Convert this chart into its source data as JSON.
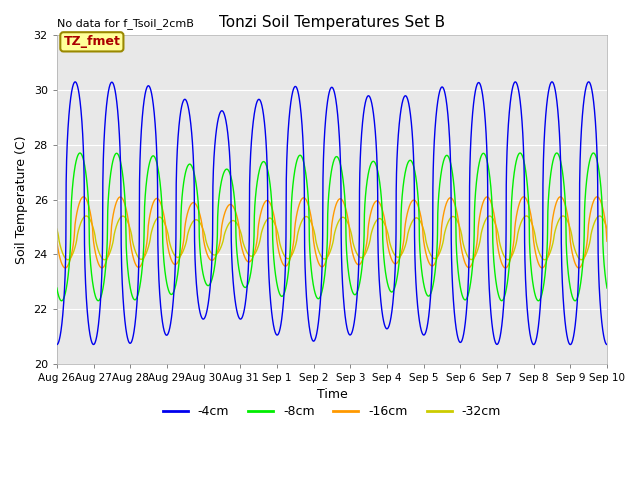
{
  "title": "Tonzi Soil Temperatures Set B",
  "xlabel": "Time",
  "ylabel": "Soil Temperature (C)",
  "no_data_label": "No data for f_Tsoil_2cmB",
  "legend_label": "TZ_fmet",
  "ylim": [
    20,
    32
  ],
  "yticks": [
    20,
    22,
    24,
    26,
    28,
    30,
    32
  ],
  "xtick_labels": [
    "Aug 26",
    "Aug 27",
    "Aug 28",
    "Aug 29",
    "Aug 30",
    "Aug 31",
    "Sep 1",
    "Sep 2",
    "Sep 3",
    "Sep 4",
    "Sep 5",
    "Sep 6",
    "Sep 7",
    "Sep 8",
    "Sep 9",
    "Sep 10"
  ],
  "series": {
    "4cm": {
      "color": "#0000ee",
      "label": "-4cm"
    },
    "8cm": {
      "color": "#00ee00",
      "label": "-8cm"
    },
    "16cm": {
      "color": "#ff9900",
      "label": "-16cm"
    },
    "32cm": {
      "color": "#cccc00",
      "label": "-32cm"
    }
  },
  "background_color": "#e8e8e8",
  "legend_box_facecolor": "#ffff99",
  "legend_box_edgecolor": "#998800",
  "legend_text_color": "#aa0000",
  "fig_width": 6.4,
  "fig_height": 4.8,
  "dpi": 100
}
